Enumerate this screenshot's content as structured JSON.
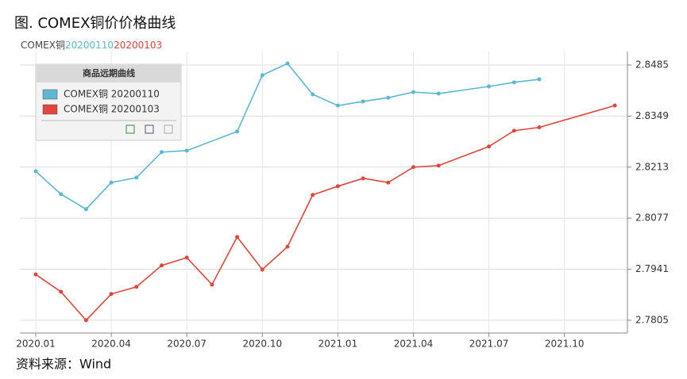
{
  "chart_data": {
    "type": "line",
    "title": "图. COMEX铜价价格曲线",
    "subtitle_parts": [
      "COMEX铜",
      "20200110",
      "20200103"
    ],
    "source": "资料来源：Wind",
    "legend_title": "商品远期曲线",
    "xticks": [
      "2020.01",
      "2020.04",
      "2020.07",
      "2020.10",
      "2021.01",
      "2021.04",
      "2021.07",
      "2021.10"
    ],
    "ylim": [
      2.7771,
      2.8521
    ],
    "yticks": [
      2.7805,
      2.7941,
      2.8077,
      2.8213,
      2.8349,
      2.8485
    ],
    "grid": true,
    "series": [
      {
        "name": "COMEX铜 20200110",
        "color": "#5bb8d0",
        "x": [
          "2020.01",
          "2020.02",
          "2020.03",
          "2020.04",
          "2020.05",
          "2020.06",
          "2020.07",
          "2020.09",
          "2020.10",
          "2020.11",
          "2020.12",
          "2021.01",
          "2021.02",
          "2021.03",
          "2021.04",
          "2021.05",
          "2021.07",
          "2021.08",
          "2021.09"
        ],
        "values": [
          2.8202,
          2.8141,
          2.8101,
          2.8172,
          2.8185,
          2.8253,
          2.8257,
          2.8308,
          2.8458,
          2.8489,
          2.8407,
          2.8377,
          2.8388,
          2.8398,
          2.8413,
          2.8409,
          2.8428,
          2.8439,
          2.8447
        ]
      },
      {
        "name": "COMEX铜 20200103",
        "color": "#e0463c",
        "x": [
          "2020.01",
          "2020.02",
          "2020.03",
          "2020.04",
          "2020.05",
          "2020.06",
          "2020.07",
          "2020.08",
          "2020.09",
          "2020.10",
          "2020.11",
          "2020.12",
          "2021.01",
          "2021.02",
          "2021.03",
          "2021.04",
          "2021.05",
          "2021.07",
          "2021.08",
          "2021.09",
          "2021.12"
        ],
        "values": [
          2.7927,
          2.7881,
          2.7805,
          2.7875,
          2.7894,
          2.7951,
          2.7972,
          2.79,
          2.8027,
          2.794,
          2.8001,
          2.8139,
          2.8162,
          2.8183,
          2.8172,
          2.8213,
          2.8217,
          2.8268,
          2.831,
          2.8319,
          2.8377
        ]
      }
    ]
  }
}
